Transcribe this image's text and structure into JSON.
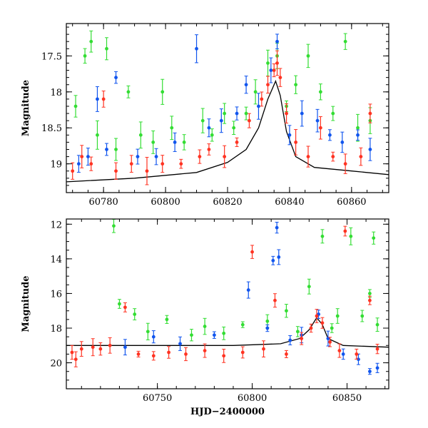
{
  "chart_data": [
    {
      "type": "scatter",
      "name": "top-panel",
      "title": "",
      "xlabel": "",
      "ylabel": "Magnitude",
      "xlim": [
        60768,
        60872
      ],
      "ylim": [
        19.4,
        17.05
      ],
      "y_inverted": true,
      "x_ticks": [
        60780,
        60800,
        60820,
        60840,
        60860
      ],
      "x_tick_labels": [
        "60780",
        "60800",
        "60820",
        "60840",
        "60860"
      ],
      "y_ticks": [
        17.5,
        18,
        18.5,
        19
      ],
      "y_tick_labels": [
        "17.5",
        "18",
        "18.5",
        "19"
      ],
      "grid": false,
      "legend": "none",
      "model_curve": {
        "color": "#000000",
        "points": [
          [
            60768,
            19.25
          ],
          [
            60790,
            19.2
          ],
          [
            60810,
            19.12
          ],
          [
            60820,
            18.98
          ],
          [
            60826,
            18.8
          ],
          [
            60830,
            18.5
          ],
          [
            60833,
            18.1
          ],
          [
            60835.5,
            17.85
          ],
          [
            60837,
            18.05
          ],
          [
            60839,
            18.55
          ],
          [
            60842,
            18.9
          ],
          [
            60848,
            19.05
          ],
          [
            60860,
            19.1
          ],
          [
            60872,
            19.15
          ]
        ]
      },
      "series": [
        {
          "color": "#33dd33",
          "points": [
            [
              60771,
              18.2
            ],
            [
              60774,
              17.5
            ],
            [
              60776,
              17.3
            ],
            [
              60778,
              18.6
            ],
            [
              60781,
              17.4
            ],
            [
              60784,
              18.8
            ],
            [
              60788,
              18.0
            ],
            [
              60792,
              18.6
            ],
            [
              60796,
              18.7
            ],
            [
              60799,
              18.0
            ],
            [
              60802,
              18.5
            ],
            [
              60806,
              18.7
            ],
            [
              60812,
              18.4
            ],
            [
              60815,
              18.6
            ],
            [
              60819,
              18.3
            ],
            [
              60822,
              18.5
            ],
            [
              60826,
              18.3
            ],
            [
              60829,
              18.0
            ],
            [
              60833,
              17.6
            ],
            [
              60836,
              17.5
            ],
            [
              60839,
              18.2
            ],
            [
              60842,
              17.9
            ],
            [
              60846,
              17.5
            ],
            [
              60850,
              18.0
            ],
            [
              60854,
              18.3
            ],
            [
              60858,
              17.3
            ],
            [
              60862,
              18.5
            ],
            [
              60866,
              18.4
            ]
          ]
        },
        {
          "color": "#1155ee",
          "points": [
            [
              60772,
              19.0
            ],
            [
              60775,
              18.9
            ],
            [
              60778,
              18.1
            ],
            [
              60781,
              18.8
            ],
            [
              60784,
              17.8
            ],
            [
              60791,
              18.9
            ],
            [
              60797,
              18.9
            ],
            [
              60803,
              18.7
            ],
            [
              60810,
              17.4
            ],
            [
              60814,
              18.5
            ],
            [
              60818,
              18.4
            ],
            [
              60823,
              18.3
            ],
            [
              60826,
              17.9
            ],
            [
              60830,
              18.2
            ],
            [
              60834,
              17.7
            ],
            [
              60836,
              17.3
            ],
            [
              60840,
              18.6
            ],
            [
              60844,
              18.3
            ],
            [
              60849,
              18.4
            ],
            [
              60853,
              18.6
            ],
            [
              60857,
              18.7
            ],
            [
              60862,
              18.6
            ],
            [
              60866,
              18.8
            ]
          ]
        },
        {
          "color": "#ff3322",
          "points": [
            [
              60770,
              19.1
            ],
            [
              60773,
              18.9
            ],
            [
              60776,
              19.0
            ],
            [
              60780,
              18.1
            ],
            [
              60784,
              19.1
            ],
            [
              60789,
              19.0
            ],
            [
              60794,
              19.1
            ],
            [
              60799,
              19.0
            ],
            [
              60805,
              19.0
            ],
            [
              60811,
              18.9
            ],
            [
              60814,
              18.8
            ],
            [
              60819,
              18.9
            ],
            [
              60823,
              18.7
            ],
            [
              60827,
              18.4
            ],
            [
              60831,
              18.1
            ],
            [
              60833,
              17.9
            ],
            [
              60835,
              17.7
            ],
            [
              60836,
              17.6
            ],
            [
              60837,
              17.8
            ],
            [
              60839,
              18.3
            ],
            [
              60842,
              18.7
            ],
            [
              60846,
              18.9
            ],
            [
              60850,
              18.5
            ],
            [
              60854,
              18.9
            ],
            [
              60858,
              19.0
            ],
            [
              60863,
              18.9
            ],
            [
              60866,
              18.3
            ]
          ]
        }
      ]
    },
    {
      "type": "scatter",
      "name": "bottom-panel",
      "title": "",
      "xlabel": "HJD−2400000",
      "ylabel": "Magnitude",
      "xlim": [
        60702,
        60872
      ],
      "ylim": [
        21.5,
        11.7
      ],
      "y_inverted": true,
      "x_ticks": [
        60750,
        60800,
        60850
      ],
      "x_tick_labels": [
        "60750",
        "60800",
        "60850"
      ],
      "y_ticks": [
        12,
        14,
        16,
        18,
        20
      ],
      "y_tick_labels": [
        "12",
        "14",
        "16",
        "18",
        "20"
      ],
      "grid": false,
      "legend": "none",
      "model_curve": {
        "color": "#000000",
        "points": [
          [
            60702,
            19.0
          ],
          [
            60740,
            19.0
          ],
          [
            60790,
            19.0
          ],
          [
            60815,
            18.9
          ],
          [
            60825,
            18.6
          ],
          [
            60830,
            18.1
          ],
          [
            60834,
            17.4
          ],
          [
            60837,
            17.8
          ],
          [
            60840,
            18.6
          ],
          [
            60848,
            19.0
          ],
          [
            60872,
            19.1
          ]
        ]
      },
      "series": [
        {
          "color": "#33dd33",
          "points": [
            [
              60727,
              12.1
            ],
            [
              60730,
              16.6
            ],
            [
              60738,
              17.2
            ],
            [
              60745,
              18.2
            ],
            [
              60755,
              17.5
            ],
            [
              60768,
              18.4
            ],
            [
              60775,
              17.9
            ],
            [
              60785,
              18.3
            ],
            [
              60795,
              17.8
            ],
            [
              60808,
              17.6
            ],
            [
              60818,
              17.0
            ],
            [
              60824,
              18.2
            ],
            [
              60830,
              15.6
            ],
            [
              60837,
              12.7
            ],
            [
              60842,
              18.0
            ],
            [
              60845,
              17.3
            ],
            [
              60852,
              12.7
            ],
            [
              60858,
              17.3
            ],
            [
              60862,
              16.0
            ],
            [
              60864,
              12.8
            ],
            [
              60866,
              17.8
            ]
          ]
        },
        {
          "color": "#1155ee",
          "points": [
            [
              60733,
              19.1
            ],
            [
              60748,
              18.5
            ],
            [
              60762,
              18.9
            ],
            [
              60780,
              18.4
            ],
            [
              60798,
              15.8
            ],
            [
              60808,
              18.0
            ],
            [
              60811,
              14.1
            ],
            [
              60813,
              12.2
            ],
            [
              60814,
              13.9
            ],
            [
              60820,
              18.7
            ],
            [
              60826,
              18.4
            ],
            [
              60835,
              17.2
            ],
            [
              60840,
              18.6
            ],
            [
              60848,
              19.5
            ],
            [
              60856,
              19.8
            ],
            [
              60862,
              20.5
            ],
            [
              60866,
              20.3
            ]
          ]
        },
        {
          "color": "#ff3322",
          "points": [
            [
              60705,
              19.4
            ],
            [
              60707,
              19.8
            ],
            [
              60710,
              19.2
            ],
            [
              60716,
              19.1
            ],
            [
              60720,
              19.2
            ],
            [
              60725,
              19.0
            ],
            [
              60733,
              16.8
            ],
            [
              60740,
              19.5
            ],
            [
              60748,
              19.6
            ],
            [
              60756,
              19.4
            ],
            [
              60765,
              19.5
            ],
            [
              60775,
              19.3
            ],
            [
              60785,
              19.6
            ],
            [
              60795,
              19.4
            ],
            [
              60800,
              13.6
            ],
            [
              60806,
              19.2
            ],
            [
              60812,
              16.4
            ],
            [
              60818,
              19.5
            ],
            [
              60826,
              18.6
            ],
            [
              60831,
              18.0
            ],
            [
              60834,
              17.3
            ],
            [
              60837,
              17.7
            ],
            [
              60841,
              18.8
            ],
            [
              60846,
              19.3
            ],
            [
              60849,
              12.4
            ],
            [
              60855,
              19.5
            ],
            [
              60862,
              16.4
            ],
            [
              60866,
              19.2
            ]
          ]
        }
      ]
    }
  ]
}
